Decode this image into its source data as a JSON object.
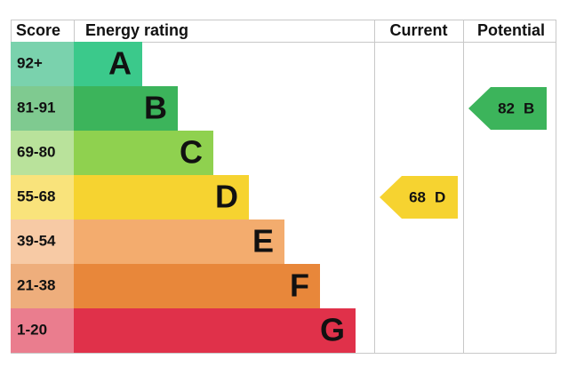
{
  "header": {
    "score": "Score",
    "energy_rating": "Energy rating",
    "current": "Current",
    "potential": "Potential"
  },
  "bands": [
    {
      "score": "92+",
      "letter": "A",
      "color": "#3bc98b",
      "score_color": "#7ad2ad"
    },
    {
      "score": "81-91",
      "letter": "B",
      "color": "#3cb45b",
      "score_color": "#7fca90"
    },
    {
      "score": "69-80",
      "letter": "C",
      "color": "#8fd14f",
      "score_color": "#b9e29b"
    },
    {
      "score": "55-68",
      "letter": "D",
      "color": "#f6d330",
      "score_color": "#f9e37b"
    },
    {
      "score": "39-54",
      "letter": "E",
      "color": "#f3ac6e",
      "score_color": "#f7caa5"
    },
    {
      "score": "21-38",
      "letter": "F",
      "color": "#e8873a",
      "score_color": "#eeae7c"
    },
    {
      "score": "1-20",
      "letter": "G",
      "color": "#e0314a",
      "score_color": "#ea7d8e"
    }
  ],
  "current": {
    "value": 68,
    "letter": "D",
    "color": "#f6d330"
  },
  "potential": {
    "value": 82,
    "letter": "B",
    "color": "#3cb45b"
  }
}
